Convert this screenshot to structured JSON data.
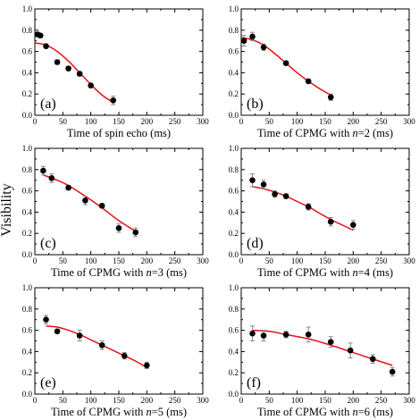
{
  "figure": {
    "ylabel": "Visibility"
  },
  "chart_data": [
    {
      "type": "scatter",
      "panel_tag": "(a)",
      "xlabel": "Time of spin echo (ms)",
      "xlim": [
        0,
        300
      ],
      "ylim": [
        0.0,
        1.0
      ],
      "xticks": [
        "0",
        "50",
        "100",
        "150",
        "200",
        "250",
        "300"
      ],
      "yticks": [
        "0.0",
        "0.2",
        "0.4",
        "0.6",
        "0.8",
        "1.0"
      ],
      "points": [
        {
          "x": 5,
          "y": 0.76,
          "err": 0.02
        },
        {
          "x": 10,
          "y": 0.75,
          "err": 0.02
        },
        {
          "x": 20,
          "y": 0.65,
          "err": 0.02
        },
        {
          "x": 40,
          "y": 0.5,
          "err": 0.02
        },
        {
          "x": 60,
          "y": 0.44,
          "err": 0.02
        },
        {
          "x": 80,
          "y": 0.39,
          "err": 0.02
        },
        {
          "x": 100,
          "y": 0.28,
          "err": 0.02
        },
        {
          "x": 140,
          "y": 0.14,
          "err": 0.04
        }
      ],
      "fit": [
        [
          0,
          0.68
        ],
        [
          20,
          0.66
        ],
        [
          40,
          0.6
        ],
        [
          60,
          0.51
        ],
        [
          80,
          0.4
        ],
        [
          100,
          0.29
        ],
        [
          120,
          0.19
        ],
        [
          140,
          0.12
        ]
      ]
    },
    {
      "type": "scatter",
      "panel_tag": "(b)",
      "xlabel_parts": [
        "Time of CPMG with ",
        "n",
        "=2 (ms)"
      ],
      "xlim": [
        0,
        300
      ],
      "ylim": [
        0.0,
        1.0
      ],
      "xticks": [
        "0",
        "50",
        "100",
        "150",
        "200",
        "250",
        "300"
      ],
      "yticks": [
        "0.0",
        "0.2",
        "0.4",
        "0.6",
        "0.8",
        "1.0"
      ],
      "points": [
        {
          "x": 5,
          "y": 0.7,
          "err": 0.05
        },
        {
          "x": 20,
          "y": 0.74,
          "err": 0.04
        },
        {
          "x": 40,
          "y": 0.64,
          "err": 0.03
        },
        {
          "x": 80,
          "y": 0.49,
          "err": 0.02
        },
        {
          "x": 120,
          "y": 0.32,
          "err": 0.02
        },
        {
          "x": 160,
          "y": 0.17,
          "err": 0.03
        }
      ],
      "fit": [
        [
          0,
          0.73
        ],
        [
          20,
          0.71
        ],
        [
          40,
          0.66
        ],
        [
          60,
          0.58
        ],
        [
          80,
          0.49
        ],
        [
          100,
          0.4
        ],
        [
          120,
          0.32
        ],
        [
          140,
          0.25
        ],
        [
          160,
          0.19
        ]
      ]
    },
    {
      "type": "scatter",
      "panel_tag": "(c)",
      "xlabel_parts": [
        "Time of CPMG with ",
        "n",
        "=3 (ms)"
      ],
      "xlim": [
        0,
        300
      ],
      "ylim": [
        0.0,
        1.0
      ],
      "xticks": [
        "0",
        "50",
        "100",
        "150",
        "200",
        "250",
        "300"
      ],
      "yticks": [
        "0.0",
        "0.2",
        "0.4",
        "0.6",
        "0.8",
        "1.0"
      ],
      "points": [
        {
          "x": 15,
          "y": 0.79,
          "err": 0.04
        },
        {
          "x": 30,
          "y": 0.72,
          "err": 0.04
        },
        {
          "x": 60,
          "y": 0.63,
          "err": 0.02
        },
        {
          "x": 90,
          "y": 0.51,
          "err": 0.04
        },
        {
          "x": 120,
          "y": 0.46,
          "err": 0.02
        },
        {
          "x": 150,
          "y": 0.25,
          "err": 0.04
        },
        {
          "x": 180,
          "y": 0.21,
          "err": 0.04
        }
      ],
      "fit": [
        [
          15,
          0.75
        ],
        [
          40,
          0.7
        ],
        [
          60,
          0.65
        ],
        [
          90,
          0.55
        ],
        [
          120,
          0.44
        ],
        [
          150,
          0.32
        ],
        [
          180,
          0.22
        ]
      ]
    },
    {
      "type": "scatter",
      "panel_tag": "(d)",
      "xlabel_parts": [
        "Time of CPMG with ",
        "n",
        "=4 (ms)"
      ],
      "xlim": [
        0,
        300
      ],
      "ylim": [
        0.0,
        1.0
      ],
      "xticks": [
        "0",
        "50",
        "100",
        "150",
        "200",
        "250",
        "300"
      ],
      "yticks": [
        "0.0",
        "0.2",
        "0.4",
        "0.6",
        "0.8",
        "1.0"
      ],
      "points": [
        {
          "x": 20,
          "y": 0.7,
          "err": 0.06
        },
        {
          "x": 40,
          "y": 0.66,
          "err": 0.04
        },
        {
          "x": 60,
          "y": 0.57,
          "err": 0.03
        },
        {
          "x": 80,
          "y": 0.55,
          "err": 0.02
        },
        {
          "x": 120,
          "y": 0.45,
          "err": 0.03
        },
        {
          "x": 160,
          "y": 0.31,
          "err": 0.04
        },
        {
          "x": 200,
          "y": 0.28,
          "err": 0.04
        }
      ],
      "fit": [
        [
          20,
          0.64
        ],
        [
          40,
          0.62
        ],
        [
          60,
          0.59
        ],
        [
          80,
          0.55
        ],
        [
          100,
          0.5
        ],
        [
          120,
          0.45
        ],
        [
          140,
          0.39
        ],
        [
          160,
          0.33
        ],
        [
          180,
          0.28
        ],
        [
          200,
          0.23
        ]
      ]
    },
    {
      "type": "scatter",
      "panel_tag": "(e)",
      "xlabel_parts": [
        "Time of CPMG with ",
        "n",
        "=5 (ms)"
      ],
      "xlim": [
        0,
        300
      ],
      "ylim": [
        0.0,
        1.0
      ],
      "xticks": [
        "0",
        "50",
        "100",
        "150",
        "200",
        "250",
        "300"
      ],
      "yticks": [
        "0.0",
        "0.2",
        "0.4",
        "0.6",
        "0.8",
        "1.0"
      ],
      "points": [
        {
          "x": 20,
          "y": 0.7,
          "err": 0.04
        },
        {
          "x": 40,
          "y": 0.59,
          "err": 0.02
        },
        {
          "x": 80,
          "y": 0.55,
          "err": 0.05
        },
        {
          "x": 120,
          "y": 0.46,
          "err": 0.04
        },
        {
          "x": 160,
          "y": 0.36,
          "err": 0.03
        },
        {
          "x": 200,
          "y": 0.27,
          "err": 0.03
        }
      ],
      "fit": [
        [
          20,
          0.64
        ],
        [
          40,
          0.63
        ],
        [
          60,
          0.6
        ],
        [
          80,
          0.56
        ],
        [
          100,
          0.51
        ],
        [
          120,
          0.46
        ],
        [
          140,
          0.41
        ],
        [
          160,
          0.36
        ],
        [
          180,
          0.31
        ],
        [
          200,
          0.25
        ]
      ]
    },
    {
      "type": "scatter",
      "panel_tag": "(f)",
      "xlabel_parts": [
        "Time of CPMG with ",
        "n",
        "=6 (ms)"
      ],
      "xlim": [
        0,
        300
      ],
      "ylim": [
        0.0,
        1.0
      ],
      "xticks": [
        "0",
        "50",
        "100",
        "150",
        "200",
        "250",
        "300"
      ],
      "yticks": [
        "0.0",
        "0.2",
        "0.4",
        "0.6",
        "0.8",
        "1.0"
      ],
      "points": [
        {
          "x": 20,
          "y": 0.57,
          "err": 0.07
        },
        {
          "x": 40,
          "y": 0.55,
          "err": 0.05
        },
        {
          "x": 80,
          "y": 0.56,
          "err": 0.03
        },
        {
          "x": 120,
          "y": 0.56,
          "err": 0.07
        },
        {
          "x": 160,
          "y": 0.49,
          "err": 0.05
        },
        {
          "x": 195,
          "y": 0.41,
          "err": 0.07
        },
        {
          "x": 235,
          "y": 0.33,
          "err": 0.04
        },
        {
          "x": 270,
          "y": 0.21,
          "err": 0.04
        }
      ],
      "fit": [
        [
          20,
          0.6
        ],
        [
          50,
          0.59
        ],
        [
          80,
          0.56
        ],
        [
          120,
          0.52
        ],
        [
          160,
          0.46
        ],
        [
          200,
          0.39
        ],
        [
          235,
          0.33
        ],
        [
          270,
          0.27
        ]
      ]
    }
  ]
}
